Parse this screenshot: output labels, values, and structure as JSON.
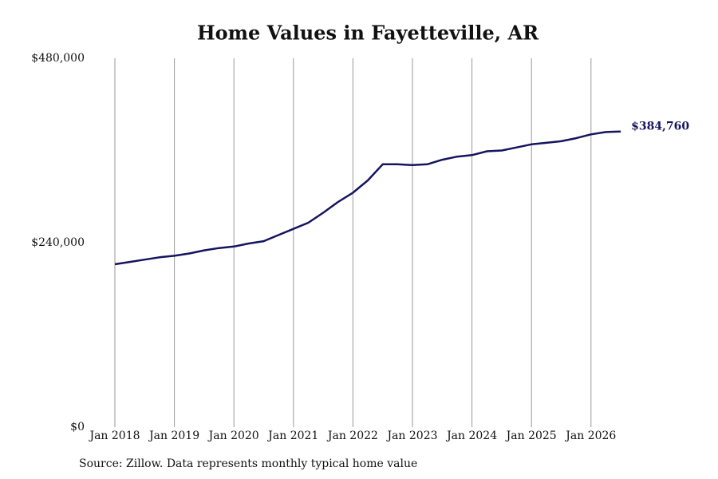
{
  "chart_data": {
    "type": "line",
    "title": "Home Values in Fayetteville, AR",
    "source": "Source: Zillow. Data represents monthly typical home value",
    "x": [
      "2018-01",
      "2018-04",
      "2018-07",
      "2018-10",
      "2019-01",
      "2019-04",
      "2019-07",
      "2019-10",
      "2020-01",
      "2020-04",
      "2020-07",
      "2020-10",
      "2021-01",
      "2021-04",
      "2021-07",
      "2021-10",
      "2022-01",
      "2022-04",
      "2022-07",
      "2022-10",
      "2023-01",
      "2023-04",
      "2023-07",
      "2023-10",
      "2024-01",
      "2024-04",
      "2024-07",
      "2024-10",
      "2025-01",
      "2025-04",
      "2025-07",
      "2025-10",
      "2026-01",
      "2026-04",
      "2026-07"
    ],
    "values": [
      212000,
      215000,
      218000,
      221000,
      223000,
      226000,
      230000,
      233000,
      235000,
      239000,
      242000,
      250000,
      258000,
      266000,
      279000,
      293000,
      305000,
      321000,
      342000,
      342000,
      341000,
      342000,
      348000,
      352000,
      354000,
      359000,
      360000,
      364000,
      368000,
      370000,
      372000,
      376000,
      381000,
      384000,
      384760
    ],
    "value_labels": [
      null,
      null,
      null,
      null,
      null,
      null,
      null,
      null,
      null,
      null,
      null,
      null,
      null,
      null,
      null,
      null,
      null,
      null,
      null,
      null,
      null,
      null,
      null,
      null,
      null,
      null,
      null,
      null,
      null,
      null,
      null,
      null,
      null,
      null,
      "$384,760"
    ],
    "color": "#14145f",
    "ylim": [
      0,
      480000
    ],
    "yticks": [
      {
        "value": 0,
        "label": "$0"
      },
      {
        "value": 240000,
        "label": "$240,000"
      },
      {
        "value": 480000,
        "label": "$480,000"
      }
    ],
    "xticks": [
      {
        "value": "2018-01",
        "label": "Jan 2018"
      },
      {
        "value": "2019-01",
        "label": "Jan 2019"
      },
      {
        "value": "2020-01",
        "label": "Jan 2020"
      },
      {
        "value": "2021-01",
        "label": "Jan 2021"
      },
      {
        "value": "2022-01",
        "label": "Jan 2022"
      },
      {
        "value": "2023-01",
        "label": "Jan 2023"
      },
      {
        "value": "2024-01",
        "label": "Jan 2024"
      },
      {
        "value": "2025-01",
        "label": "Jan 2025"
      },
      {
        "value": "2026-01",
        "label": "Jan 2026"
      }
    ],
    "grid": true
  }
}
